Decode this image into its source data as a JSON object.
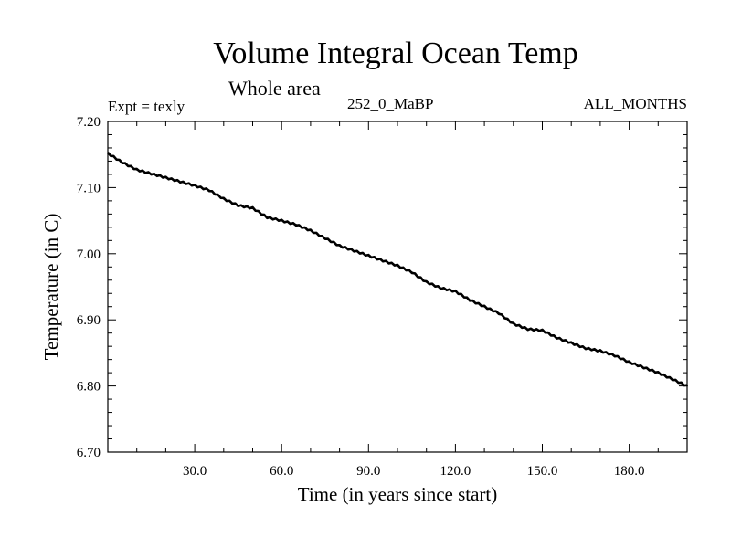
{
  "chart_data": {
    "type": "line",
    "title": "Volume Integral Ocean Temp",
    "subtitle": "Whole area",
    "annotations": {
      "experiment": "Expt = texly",
      "run": "252_0_MaBP",
      "months": "ALL_MONTHS"
    },
    "xlabel": "Time (in years since start)",
    "ylabel": "Temperature (in C)",
    "xlim": [
      0,
      200
    ],
    "ylim": [
      6.7,
      7.2
    ],
    "x_ticks": [
      30,
      60,
      90,
      120,
      150,
      180
    ],
    "x_tick_labels": [
      "30.0",
      "60.0",
      "90.0",
      "120.0",
      "150.0",
      "180.0"
    ],
    "y_ticks": [
      6.7,
      6.8,
      6.9,
      7.0,
      7.1,
      7.2
    ],
    "y_tick_labels": [
      "6.70",
      "6.80",
      "6.90",
      "7.00",
      "7.10",
      "7.20"
    ],
    "grid": false,
    "series": [
      {
        "name": "Volume integral ocean temperature",
        "color": "#000000",
        "x": [
          0,
          5,
          10,
          20,
          30,
          35,
          40,
          45,
          50,
          55,
          60,
          65,
          70,
          80,
          90,
          100,
          105,
          110,
          115,
          120,
          125,
          130,
          135,
          140,
          145,
          150,
          155,
          160,
          165,
          170,
          175,
          180,
          190,
          200
        ],
        "y": [
          7.152,
          7.138,
          7.127,
          7.115,
          7.103,
          7.096,
          7.083,
          7.073,
          7.069,
          7.055,
          7.05,
          7.044,
          7.035,
          7.012,
          6.997,
          6.982,
          6.972,
          6.957,
          6.948,
          6.943,
          6.93,
          6.92,
          6.91,
          6.894,
          6.886,
          6.884,
          6.873,
          6.865,
          6.857,
          6.853,
          6.846,
          6.836,
          6.82,
          6.8
        ]
      }
    ]
  }
}
